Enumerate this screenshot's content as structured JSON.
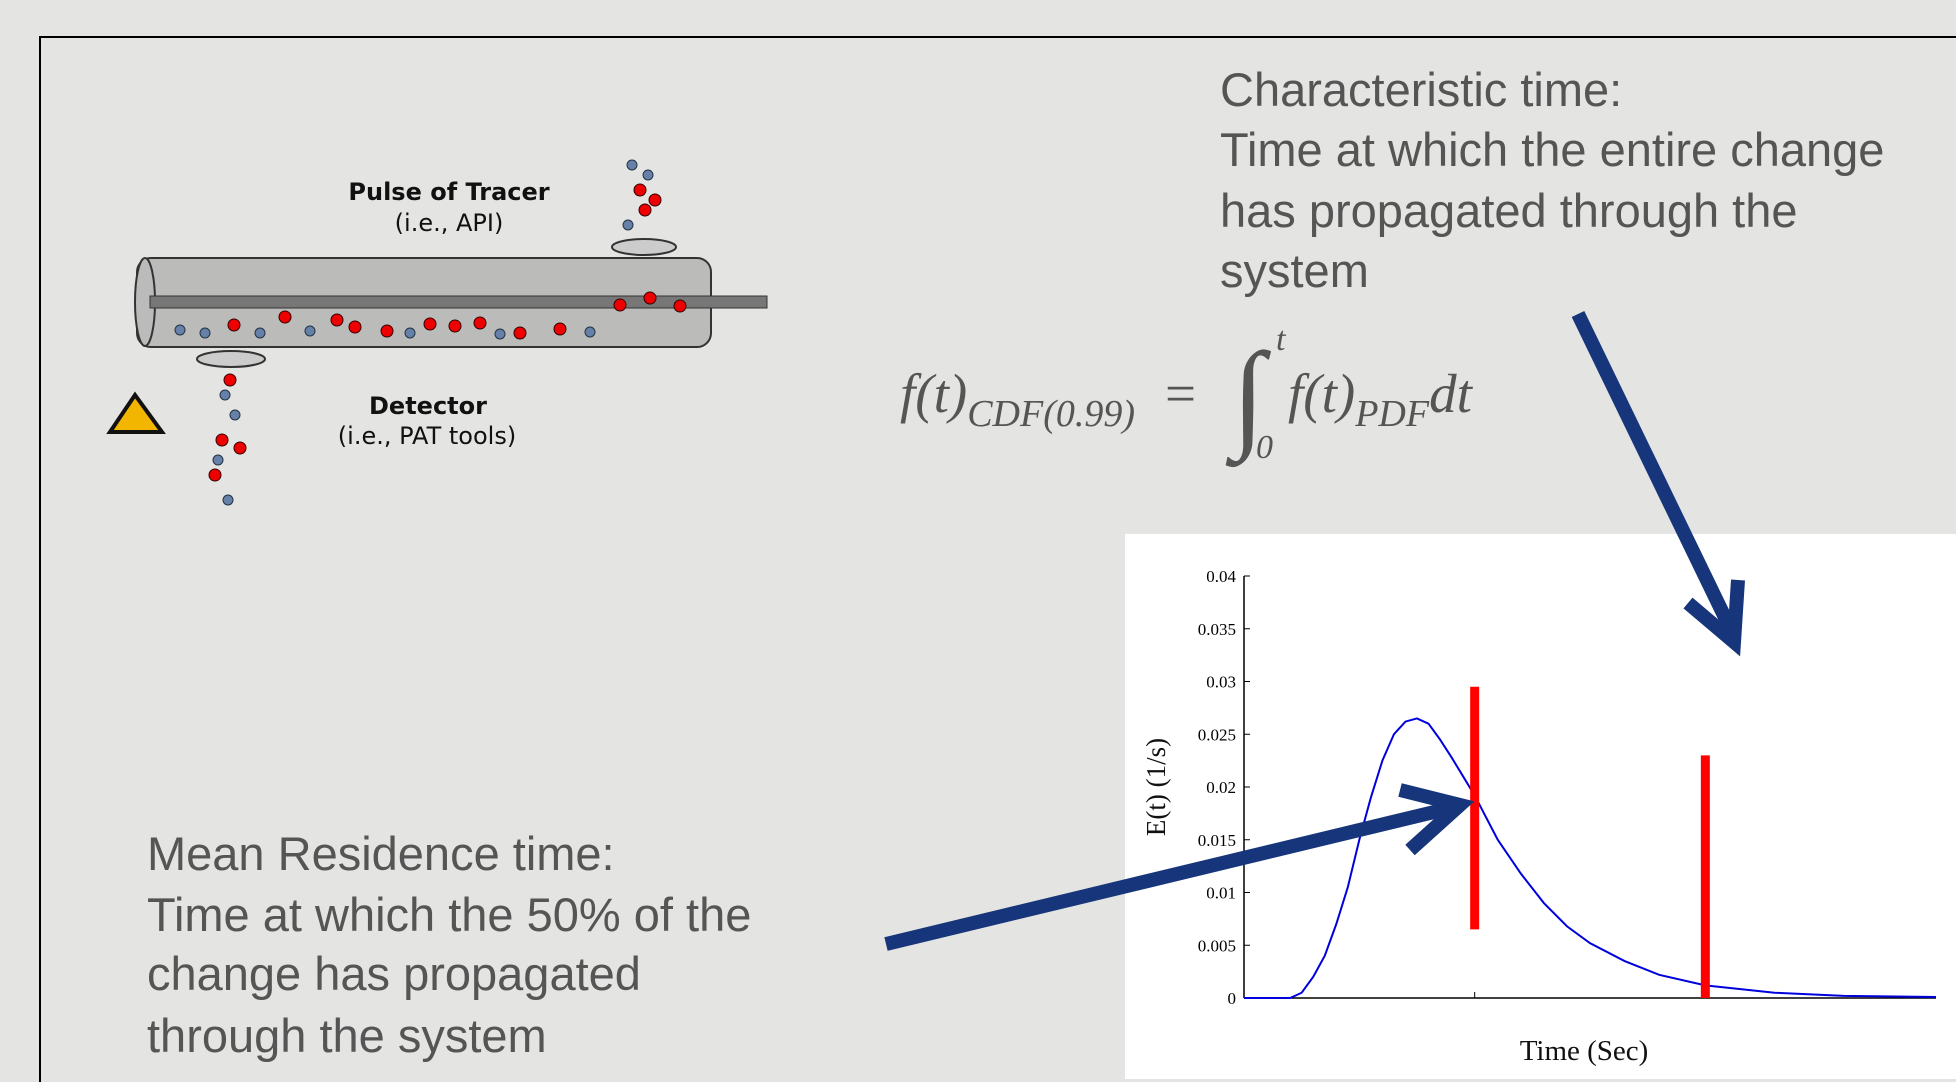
{
  "chart_data": {
    "type": "line",
    "xlabel": "Time (Sec)",
    "ylabel": "E(t) (1/s)",
    "x": [
      0,
      20,
      25,
      30,
      35,
      40,
      45,
      50,
      55,
      60,
      65,
      70,
      75,
      80,
      85,
      90,
      95,
      100,
      110,
      120,
      130,
      140,
      150,
      165,
      180,
      200,
      230,
      260,
      300
    ],
    "series": [
      {
        "color": "#0000dd",
        "values": [
          0,
          0,
          0.0005,
          0.002,
          0.004,
          0.007,
          0.0105,
          0.015,
          0.019,
          0.0225,
          0.025,
          0.0262,
          0.0265,
          0.026,
          0.0245,
          0.0228,
          0.021,
          0.0192,
          0.015,
          0.0118,
          0.009,
          0.0068,
          0.0052,
          0.0035,
          0.0022,
          0.0012,
          0.0005,
          0.0002,
          0.0001
        ]
      }
    ],
    "xlim": [
      0,
      300
    ],
    "xticks": [
      100,
      200
    ],
    "ylim": [
      0,
      0.04
    ],
    "yticks": [
      0,
      0.005,
      0.01,
      0.015,
      0.02,
      0.025,
      0.03,
      0.035,
      0.04
    ],
    "markers": [
      {
        "x": 100,
        "ymin": 0.0065,
        "ymax": 0.0295,
        "color": "#ff0000"
      },
      {
        "x": 200,
        "ymin": 0,
        "ymax": 0.023,
        "color": "#ff0000"
      }
    ]
  },
  "diagram": {
    "tracer_label": "Pulse of Tracer",
    "tracer_note": "(i.e., API)",
    "detector_label": "Detector",
    "detector_note": "(i.e., PAT tools)"
  },
  "characteristic_time": {
    "title": "Characteristic time:",
    "lines": [
      "Time at which the entire change",
      "has propagated through the",
      "system"
    ]
  },
  "mean_residence_time": {
    "title": "Mean Residence time:",
    "lines": [
      "Time at which the 50% of the",
      "change has propagated",
      "through the system"
    ]
  },
  "equation": {
    "lhs": "f(t)",
    "lhs_sub": "CDF(0.99)",
    "equals": "=",
    "integral": "∫",
    "upper": "t",
    "lower": "0",
    "integrand": "f(t)",
    "integrand_sub": "PDF",
    "differential": "dt"
  }
}
